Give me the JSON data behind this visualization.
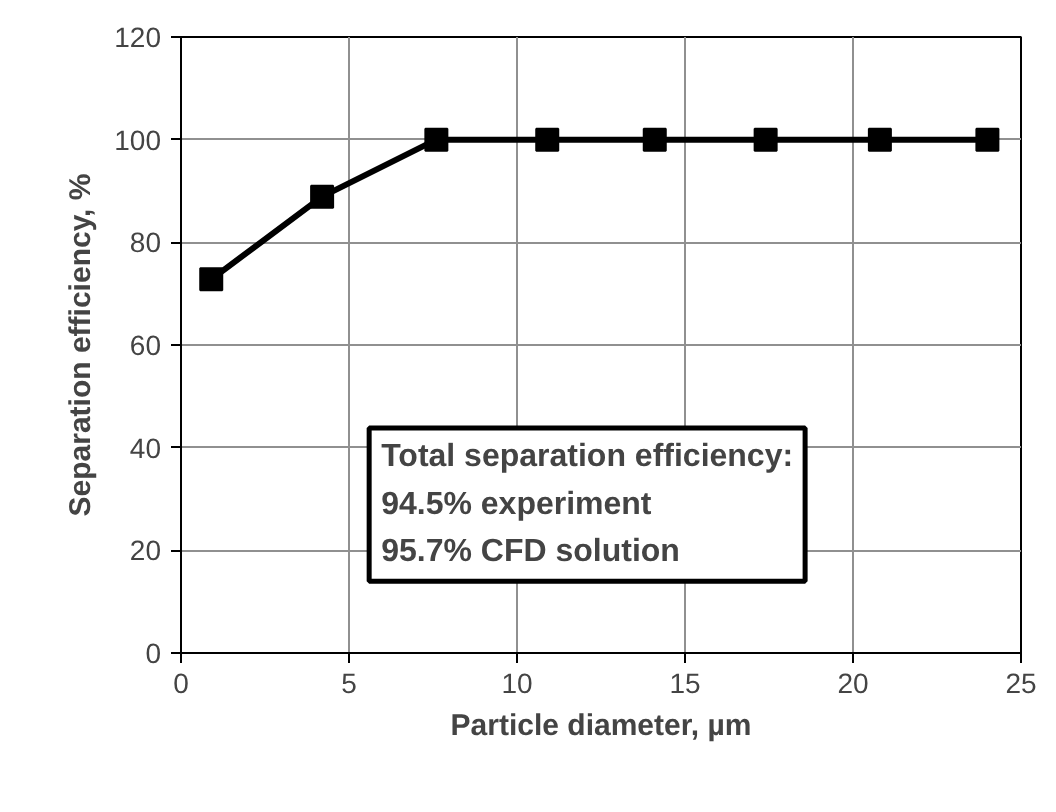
{
  "chart_data": {
    "type": "line",
    "xlabel": "Particle diameter, µm",
    "ylabel": "Separation efficiency, %",
    "x": [
      0.9,
      4.2,
      7.6,
      10.9,
      14.1,
      17.4,
      20.8,
      24.0
    ],
    "series": [
      {
        "color": "#000000",
        "values": [
          72.8,
          88.9,
          100,
          100,
          100,
          100,
          100,
          100
        ]
      }
    ],
    "xlim": [
      0,
      25
    ],
    "xticks": [
      0,
      5,
      10,
      15,
      20,
      25
    ],
    "ylim": [
      0,
      120
    ],
    "yticks": [
      0,
      20,
      40,
      60,
      80,
      100,
      120
    ],
    "grid": true,
    "marker": "square",
    "line_style": "solid",
    "annotations": [
      "Total separation efficiency:",
      "94.5% experiment",
      "95.7% CFD solution"
    ]
  }
}
